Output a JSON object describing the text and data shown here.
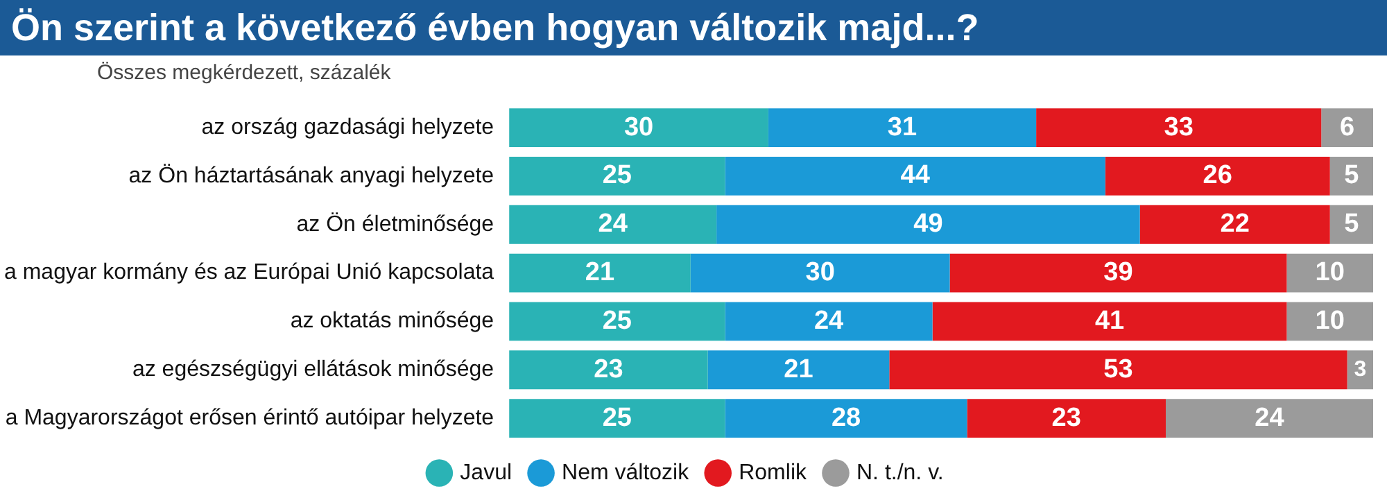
{
  "chart_data": {
    "type": "bar",
    "title": "Ön szerint a következő évben hogyan változik majd...?",
    "subtitle": "Összes megkérdezett, százalék",
    "categories": [
      "az ország gazdasági helyzete",
      "az Ön háztartásának anyagi helyzete",
      "az Ön életminősége",
      "a magyar kormány és az Európai Unió kapcsolata",
      "az oktatás minősége",
      "az egészségügyi ellátások minősége",
      "a Magyarországot erősen érintő autóipar helyzete"
    ],
    "orientation": "horizontal",
    "stacked": true,
    "tick_labels": "y",
    "data_labels": true,
    "legend": "bottom",
    "series": [
      {
        "name": "Javul",
        "color": "#2ab3b5",
        "values": [
          30,
          25,
          24,
          21,
          25,
          23,
          25
        ]
      },
      {
        "name": "Nem változik",
        "color": "#1b9ad7",
        "values": [
          31,
          44,
          49,
          30,
          24,
          21,
          28
        ]
      },
      {
        "name": "Romlik",
        "color": "#e2191f",
        "values": [
          33,
          26,
          22,
          39,
          41,
          53,
          23
        ]
      },
      {
        "name": "N. t./n. v.",
        "color": "#9b9b9b",
        "values": [
          6,
          5,
          5,
          10,
          10,
          3,
          24
        ]
      }
    ]
  }
}
